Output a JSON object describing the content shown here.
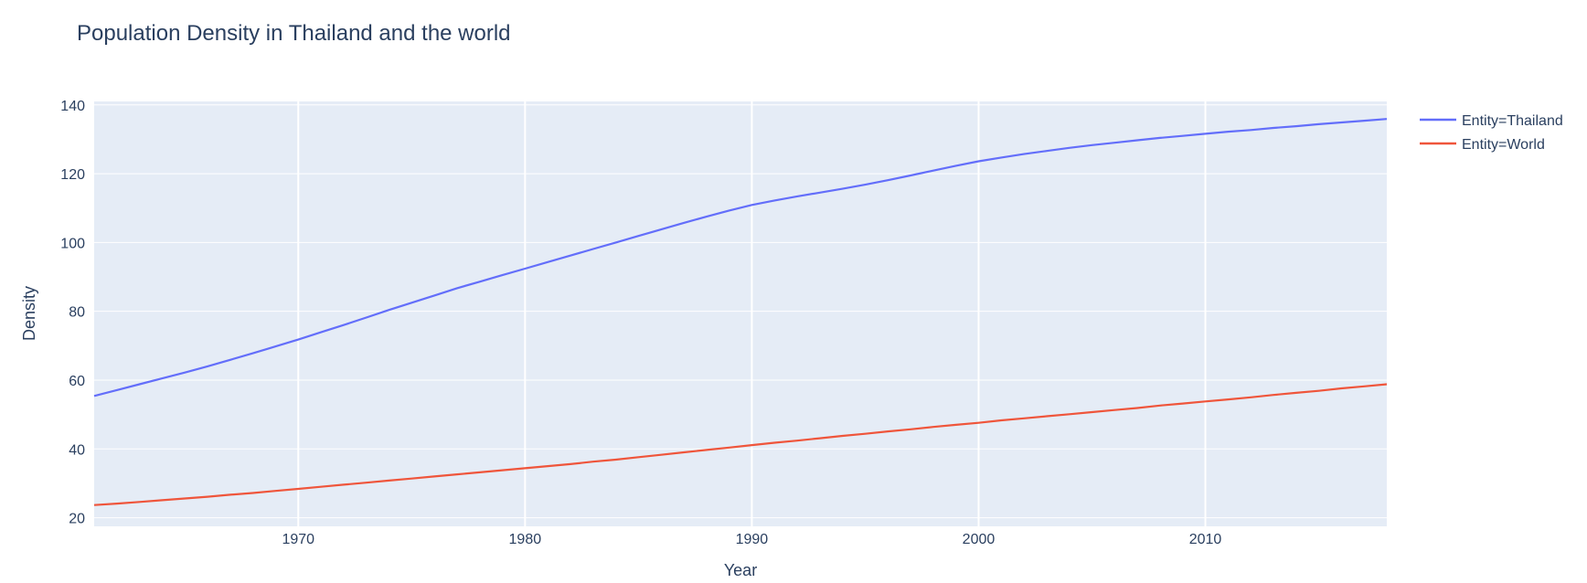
{
  "chart_data": {
    "type": "line",
    "title": "Population Density in Thailand and the world",
    "xlabel": "Year",
    "ylabel": "Density",
    "xlim": [
      1961,
      2018
    ],
    "ylim": [
      17.5,
      141
    ],
    "xticks": [
      1970,
      1980,
      1990,
      2000,
      2010
    ],
    "yticks": [
      20,
      40,
      60,
      80,
      100,
      120,
      140
    ],
    "grid": true,
    "legend_position": "top-right",
    "x": [
      1961,
      1962,
      1963,
      1964,
      1965,
      1966,
      1967,
      1968,
      1969,
      1970,
      1971,
      1972,
      1973,
      1974,
      1975,
      1976,
      1977,
      1978,
      1979,
      1980,
      1981,
      1982,
      1983,
      1984,
      1985,
      1986,
      1987,
      1988,
      1989,
      1990,
      1991,
      1992,
      1993,
      1994,
      1995,
      1996,
      1997,
      1998,
      1999,
      2000,
      2001,
      2002,
      2003,
      2004,
      2005,
      2006,
      2007,
      2008,
      2009,
      2010,
      2011,
      2012,
      2013,
      2014,
      2015,
      2016,
      2017,
      2018
    ],
    "series": [
      {
        "name": "Entity=Thailand",
        "color": "#636efa",
        "values": [
          55.4,
          57.1,
          58.8,
          60.5,
          62.2,
          64.0,
          65.9,
          67.8,
          69.8,
          71.8,
          73.9,
          76.0,
          78.2,
          80.4,
          82.5,
          84.6,
          86.7,
          88.6,
          90.5,
          92.4,
          94.3,
          96.2,
          98.1,
          100.0,
          101.9,
          103.8,
          105.7,
          107.5,
          109.3,
          110.9,
          112.2,
          113.4,
          114.5,
          115.6,
          116.8,
          118.1,
          119.5,
          120.9,
          122.3,
          123.6,
          124.7,
          125.7,
          126.6,
          127.5,
          128.3,
          129.0,
          129.7,
          130.4,
          131.0,
          131.6,
          132.2,
          132.7,
          133.3,
          133.8,
          134.4,
          134.9,
          135.4,
          135.9
        ]
      },
      {
        "name": "Entity=World",
        "color": "#ef553b",
        "values": [
          23.7,
          24.1,
          24.6,
          25.1,
          25.6,
          26.1,
          26.7,
          27.2,
          27.8,
          28.4,
          29.0,
          29.6,
          30.2,
          30.8,
          31.4,
          32.0,
          32.6,
          33.2,
          33.8,
          34.4,
          35.0,
          35.6,
          36.3,
          36.9,
          37.6,
          38.3,
          39.0,
          39.7,
          40.4,
          41.1,
          41.8,
          42.4,
          43.1,
          43.8,
          44.4,
          45.1,
          45.7,
          46.4,
          47.0,
          47.6,
          48.3,
          48.9,
          49.5,
          50.1,
          50.7,
          51.3,
          51.9,
          52.6,
          53.2,
          53.8,
          54.4,
          55.0,
          55.7,
          56.3,
          56.9,
          57.6,
          58.2,
          58.8
        ]
      }
    ]
  }
}
